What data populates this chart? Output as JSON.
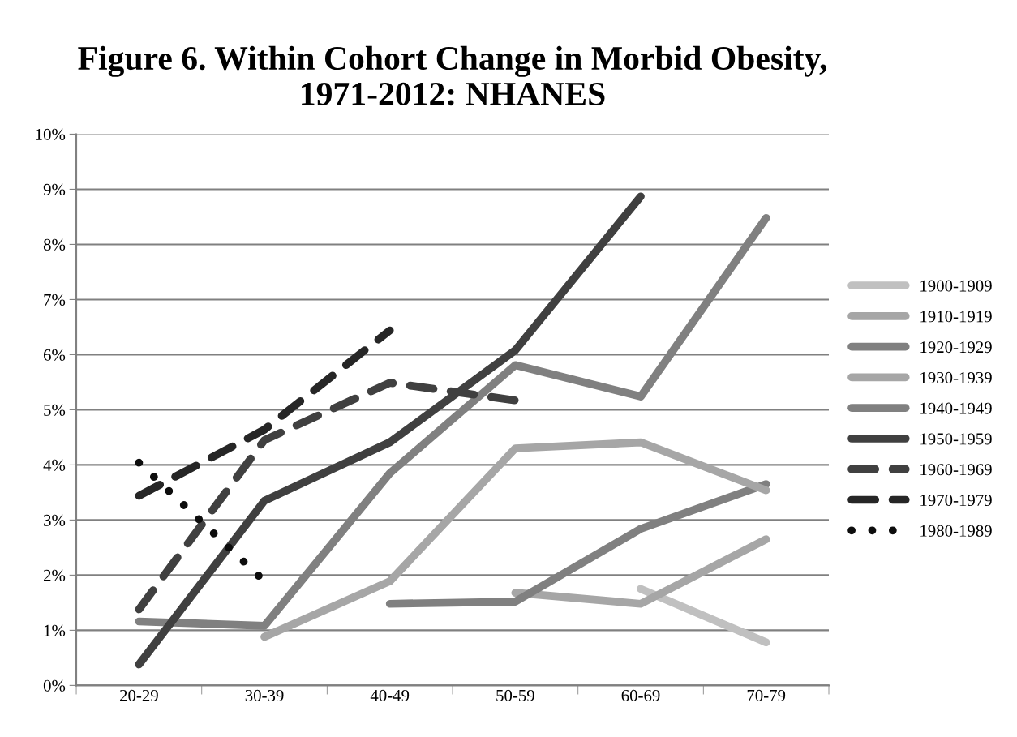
{
  "chart_data": {
    "type": "line",
    "title": "Figure 6. Within Cohort Change in Morbid Obesity, 1971-2012: NHANES",
    "categories": [
      "20-29",
      "30-39",
      "40-49",
      "50-59",
      "60-69",
      "70-79"
    ],
    "series": [
      {
        "name": "1900-1909",
        "color": "#c0c0c0",
        "line_style": "solid",
        "values": [
          null,
          null,
          null,
          null,
          1.75,
          0.78
        ]
      },
      {
        "name": "1910-1919",
        "color": "#a6a6a6",
        "line_style": "solid",
        "values": [
          null,
          null,
          null,
          1.68,
          1.48,
          2.65
        ]
      },
      {
        "name": "1920-1929",
        "color": "#808080",
        "line_style": "solid",
        "values": [
          null,
          null,
          1.48,
          1.52,
          2.84,
          3.65
        ]
      },
      {
        "name": "1930-1939",
        "color": "#a6a6a6",
        "line_style": "solid",
        "values": [
          null,
          0.88,
          1.89,
          4.3,
          4.41,
          3.54
        ]
      },
      {
        "name": "1940-1949",
        "color": "#808080",
        "line_style": "solid",
        "values": [
          1.16,
          1.08,
          3.85,
          5.81,
          5.24,
          8.48
        ]
      },
      {
        "name": "1950-1959",
        "color": "#404040",
        "line_style": "solid",
        "values": [
          0.38,
          3.35,
          4.41,
          6.08,
          8.87,
          null
        ]
      },
      {
        "name": "1960-1969",
        "color": "#404040",
        "line_style": "dashed",
        "values": [
          1.38,
          4.45,
          5.49,
          5.17,
          null,
          null
        ]
      },
      {
        "name": "1970-1979",
        "color": "#262626",
        "line_style": "dashed",
        "values": [
          3.44,
          4.64,
          6.44,
          null,
          null,
          null
        ]
      },
      {
        "name": "1980-1989",
        "color": "#0d0d0d",
        "line_style": "dotted",
        "values": [
          4.04,
          1.89,
          null,
          null,
          null,
          null
        ]
      }
    ],
    "ylim": [
      0,
      10
    ],
    "yticks": [
      {
        "value": 0,
        "label": "0%"
      },
      {
        "value": 1,
        "label": "1%"
      },
      {
        "value": 2,
        "label": "2%"
      },
      {
        "value": 3,
        "label": "3%"
      },
      {
        "value": 4,
        "label": "4%"
      },
      {
        "value": 5,
        "label": "5%"
      },
      {
        "value": 6,
        "label": "6%"
      },
      {
        "value": 7,
        "label": "7%"
      },
      {
        "value": 8,
        "label": "8%"
      },
      {
        "value": 9,
        "label": "9%"
      },
      {
        "value": 10,
        "label": "10%"
      }
    ],
    "grid": "y",
    "legend": "right",
    "marker": "none"
  }
}
